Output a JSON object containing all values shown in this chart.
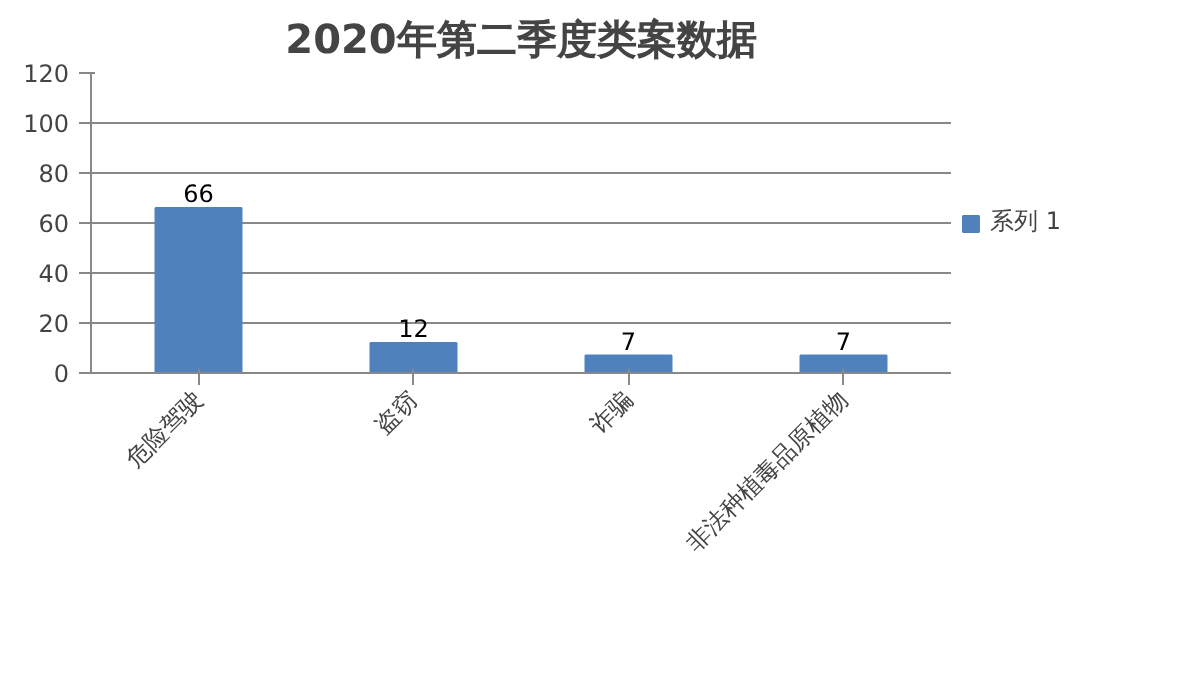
{
  "chart_data": {
    "type": "bar",
    "title": "2020年第二季度类案数据",
    "categories": [
      "危险驾驶",
      "盗窃",
      "诈骗",
      "非法种植毒品原植物"
    ],
    "series": [
      {
        "name": "系列 1",
        "color": "#4f81bd",
        "values": [
          66,
          12,
          7,
          7
        ]
      }
    ],
    "ylim": [
      0,
      120
    ],
    "yticks": [
      0,
      20,
      40,
      60,
      80,
      100,
      120
    ],
    "grid": "y",
    "legend": "right",
    "data_labels": true
  }
}
